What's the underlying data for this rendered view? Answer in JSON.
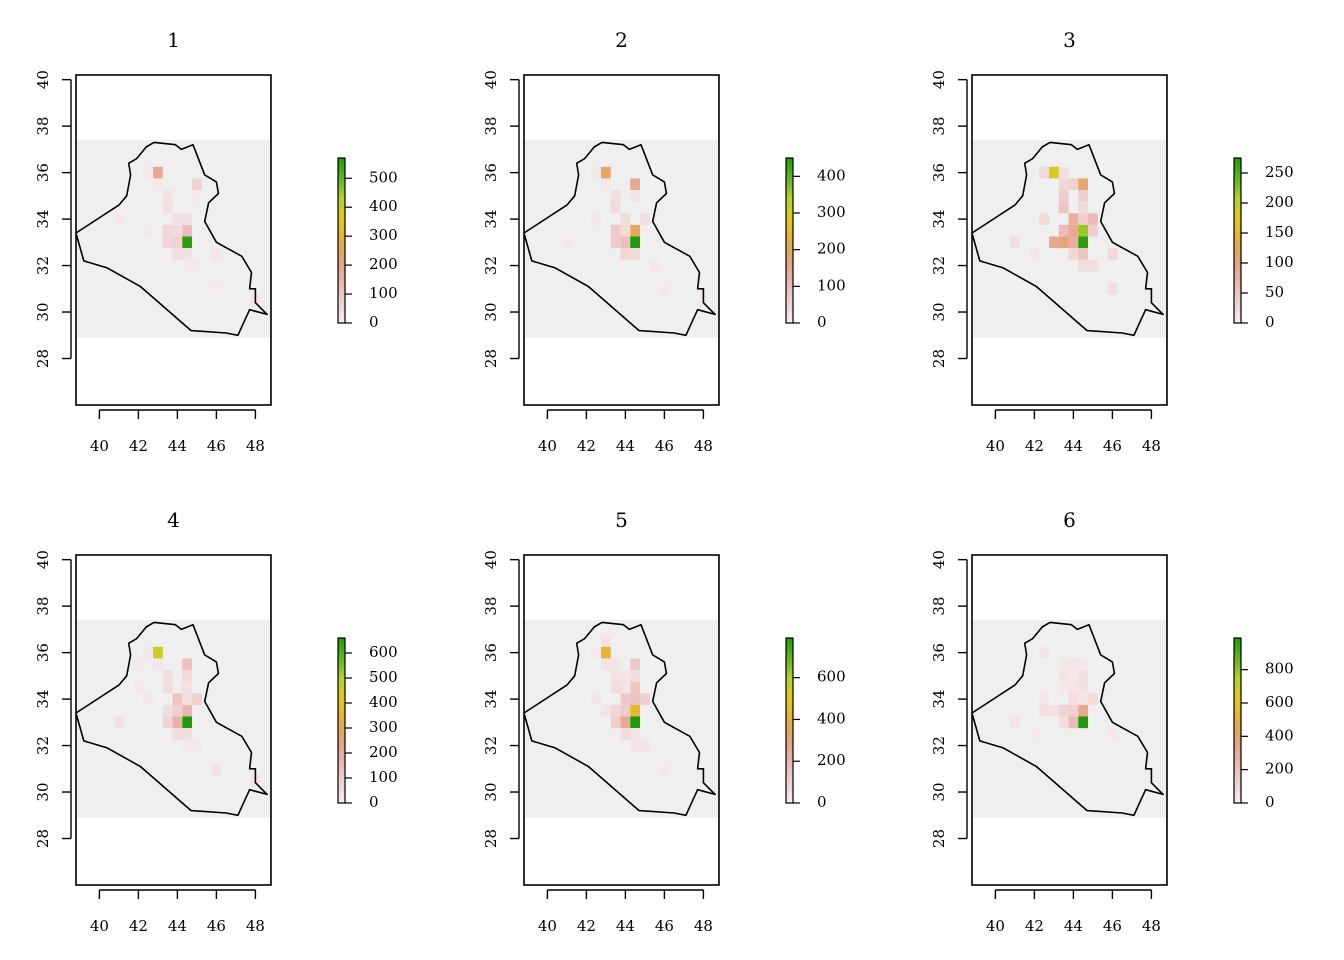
{
  "figure": {
    "palette": [
      "#f5eeee",
      "#f0d2d2",
      "#ebb3b0",
      "#e8a27a",
      "#e8ad40",
      "#e2c71c",
      "#b5d42a",
      "#6ab522",
      "#219a0a"
    ],
    "background_color": "#efefef",
    "panels": [
      {
        "title": "1",
        "x_ticks": [
          "40",
          "42",
          "44",
          "46",
          "48"
        ],
        "y_ticks": [
          "28",
          "30",
          "32",
          "34",
          "36",
          "38",
          "40"
        ],
        "legend": {
          "max": 570,
          "ticks": [
            "0",
            "100",
            "200",
            "300",
            "400",
            "500"
          ],
          "tick_values": [
            0,
            100,
            200,
            300,
            400,
            500
          ]
        },
        "cells": [
          {
            "lon": 43.0,
            "lat": 36.0,
            "value": 180
          },
          {
            "lon": 42.5,
            "lat": 36.0,
            "value": 15
          },
          {
            "lon": 43.0,
            "lat": 35.5,
            "value": 15
          },
          {
            "lon": 45.0,
            "lat": 35.5,
            "value": 70
          },
          {
            "lon": 43.5,
            "lat": 35.0,
            "value": 25
          },
          {
            "lon": 45.0,
            "lat": 35.0,
            "value": 15
          },
          {
            "lon": 43.5,
            "lat": 34.5,
            "value": 35
          },
          {
            "lon": 41.0,
            "lat": 34.0,
            "value": 15
          },
          {
            "lon": 44.0,
            "lat": 34.0,
            "value": 30
          },
          {
            "lon": 44.5,
            "lat": 34.0,
            "value": 30
          },
          {
            "lon": 42.5,
            "lat": 33.5,
            "value": 15
          },
          {
            "lon": 43.5,
            "lat": 33.5,
            "value": 60
          },
          {
            "lon": 44.0,
            "lat": 33.5,
            "value": 50
          },
          {
            "lon": 44.5,
            "lat": 33.5,
            "value": 120
          },
          {
            "lon": 43.5,
            "lat": 33.0,
            "value": 60
          },
          {
            "lon": 44.0,
            "lat": 33.0,
            "value": 70
          },
          {
            "lon": 44.5,
            "lat": 33.0,
            "value": 560
          },
          {
            "lon": 44.0,
            "lat": 32.5,
            "value": 40
          },
          {
            "lon": 44.5,
            "lat": 32.5,
            "value": 30
          },
          {
            "lon": 46.0,
            "lat": 32.5,
            "value": 20
          },
          {
            "lon": 44.5,
            "lat": 32.0,
            "value": 15
          },
          {
            "lon": 45.0,
            "lat": 32.0,
            "value": 15
          },
          {
            "lon": 46.0,
            "lat": 31.0,
            "value": 10
          },
          {
            "lon": 48.0,
            "lat": 30.5,
            "value": 20
          }
        ]
      },
      {
        "title": "2",
        "x_ticks": [
          "40",
          "42",
          "44",
          "46",
          "48"
        ],
        "y_ticks": [
          "28",
          "30",
          "32",
          "34",
          "36",
          "38",
          "40"
        ],
        "legend": {
          "max": 450,
          "ticks": [
            "0",
            "100",
            "200",
            "300",
            "400"
          ],
          "tick_values": [
            0,
            100,
            200,
            300,
            400
          ]
        },
        "cells": [
          {
            "lon": 43.0,
            "lat": 36.0,
            "value": 190
          },
          {
            "lon": 42.5,
            "lat": 36.0,
            "value": 15
          },
          {
            "lon": 43.0,
            "lat": 35.5,
            "value": 15
          },
          {
            "lon": 44.5,
            "lat": 35.5,
            "value": 150
          },
          {
            "lon": 43.5,
            "lat": 35.0,
            "value": 30
          },
          {
            "lon": 44.5,
            "lat": 35.0,
            "value": 20
          },
          {
            "lon": 43.5,
            "lat": 34.5,
            "value": 40
          },
          {
            "lon": 42.5,
            "lat": 34.0,
            "value": 15
          },
          {
            "lon": 44.0,
            "lat": 34.0,
            "value": 35
          },
          {
            "lon": 45.0,
            "lat": 34.0,
            "value": 30
          },
          {
            "lon": 43.5,
            "lat": 33.5,
            "value": 70
          },
          {
            "lon": 44.0,
            "lat": 33.5,
            "value": 40
          },
          {
            "lon": 44.5,
            "lat": 33.5,
            "value": 200
          },
          {
            "lon": 43.5,
            "lat": 33.0,
            "value": 70
          },
          {
            "lon": 44.0,
            "lat": 33.0,
            "value": 90
          },
          {
            "lon": 44.5,
            "lat": 33.0,
            "value": 450
          },
          {
            "lon": 44.0,
            "lat": 32.5,
            "value": 50
          },
          {
            "lon": 44.5,
            "lat": 32.5,
            "value": 40
          },
          {
            "lon": 45.5,
            "lat": 32.0,
            "value": 15
          },
          {
            "lon": 41.0,
            "lat": 33.0,
            "value": 10
          },
          {
            "lon": 46.0,
            "lat": 31.0,
            "value": 10
          },
          {
            "lon": 48.0,
            "lat": 30.5,
            "value": 10
          }
        ]
      },
      {
        "title": "3",
        "x_ticks": [
          "40",
          "42",
          "44",
          "46",
          "48"
        ],
        "y_ticks": [
          "28",
          "30",
          "32",
          "34",
          "36",
          "38",
          "40"
        ],
        "legend": {
          "max": 275,
          "ticks": [
            "0",
            "50",
            "100",
            "150",
            "200",
            "250"
          ],
          "tick_values": [
            0,
            50,
            100,
            150,
            200,
            250
          ]
        },
        "cells": [
          {
            "lon": 43.0,
            "lat": 36.0,
            "value": 180
          },
          {
            "lon": 42.5,
            "lat": 36.0,
            "value": 25
          },
          {
            "lon": 43.5,
            "lat": 36.0,
            "value": 20
          },
          {
            "lon": 43.5,
            "lat": 35.5,
            "value": 30
          },
          {
            "lon": 44.0,
            "lat": 35.5,
            "value": 35
          },
          {
            "lon": 44.5,
            "lat": 35.5,
            "value": 110
          },
          {
            "lon": 43.5,
            "lat": 35.0,
            "value": 40
          },
          {
            "lon": 44.5,
            "lat": 35.0,
            "value": 40
          },
          {
            "lon": 43.5,
            "lat": 34.5,
            "value": 50
          },
          {
            "lon": 44.5,
            "lat": 34.5,
            "value": 25
          },
          {
            "lon": 42.5,
            "lat": 34.0,
            "value": 25
          },
          {
            "lon": 44.0,
            "lat": 34.0,
            "value": 80
          },
          {
            "lon": 44.5,
            "lat": 34.0,
            "value": 40
          },
          {
            "lon": 45.0,
            "lat": 34.0,
            "value": 60
          },
          {
            "lon": 43.5,
            "lat": 33.5,
            "value": 60
          },
          {
            "lon": 44.0,
            "lat": 33.5,
            "value": 90
          },
          {
            "lon": 44.5,
            "lat": 33.5,
            "value": 220
          },
          {
            "lon": 45.0,
            "lat": 33.5,
            "value": 40
          },
          {
            "lon": 43.0,
            "lat": 33.0,
            "value": 90
          },
          {
            "lon": 43.5,
            "lat": 33.0,
            "value": 100
          },
          {
            "lon": 44.0,
            "lat": 33.0,
            "value": 80
          },
          {
            "lon": 44.5,
            "lat": 33.0,
            "value": 270
          },
          {
            "lon": 44.0,
            "lat": 32.5,
            "value": 30
          },
          {
            "lon": 44.5,
            "lat": 32.5,
            "value": 50
          },
          {
            "lon": 44.5,
            "lat": 32.0,
            "value": 20
          },
          {
            "lon": 45.0,
            "lat": 32.0,
            "value": 20
          },
          {
            "lon": 46.0,
            "lat": 32.5,
            "value": 25
          },
          {
            "lon": 41.0,
            "lat": 33.0,
            "value": 20
          },
          {
            "lon": 42.0,
            "lat": 32.5,
            "value": 10
          },
          {
            "lon": 46.0,
            "lat": 31.0,
            "value": 20
          }
        ]
      },
      {
        "title": "4",
        "x_ticks": [
          "40",
          "42",
          "44",
          "46",
          "48"
        ],
        "y_ticks": [
          "28",
          "30",
          "32",
          "34",
          "36",
          "38",
          "40"
        ],
        "legend": {
          "max": 660,
          "ticks": [
            "0",
            "100",
            "200",
            "300",
            "400",
            "500",
            "600"
          ],
          "tick_values": [
            0,
            100,
            200,
            300,
            400,
            500,
            600
          ]
        },
        "cells": [
          {
            "lon": 43.0,
            "lat": 36.0,
            "value": 460
          },
          {
            "lon": 42.5,
            "lat": 36.0,
            "value": 20
          },
          {
            "lon": 43.0,
            "lat": 35.5,
            "value": 25
          },
          {
            "lon": 42.0,
            "lat": 35.5,
            "value": 15
          },
          {
            "lon": 44.5,
            "lat": 35.5,
            "value": 130
          },
          {
            "lon": 43.5,
            "lat": 35.0,
            "value": 50
          },
          {
            "lon": 44.5,
            "lat": 35.0,
            "value": 60
          },
          {
            "lon": 43.5,
            "lat": 34.5,
            "value": 50
          },
          {
            "lon": 44.5,
            "lat": 34.5,
            "value": 40
          },
          {
            "lon": 42.0,
            "lat": 34.5,
            "value": 20
          },
          {
            "lon": 42.5,
            "lat": 34.0,
            "value": 25
          },
          {
            "lon": 44.0,
            "lat": 34.0,
            "value": 120
          },
          {
            "lon": 44.5,
            "lat": 34.0,
            "value": 40
          },
          {
            "lon": 45.0,
            "lat": 34.0,
            "value": 90
          },
          {
            "lon": 43.5,
            "lat": 33.5,
            "value": 50
          },
          {
            "lon": 44.0,
            "lat": 33.5,
            "value": 90
          },
          {
            "lon": 44.5,
            "lat": 33.5,
            "value": 160
          },
          {
            "lon": 43.5,
            "lat": 33.0,
            "value": 80
          },
          {
            "lon": 44.0,
            "lat": 33.0,
            "value": 170
          },
          {
            "lon": 44.5,
            "lat": 33.0,
            "value": 660
          },
          {
            "lon": 41.0,
            "lat": 33.0,
            "value": 40
          },
          {
            "lon": 44.0,
            "lat": 32.5,
            "value": 50
          },
          {
            "lon": 44.5,
            "lat": 32.5,
            "value": 50
          },
          {
            "lon": 44.5,
            "lat": 32.0,
            "value": 20
          },
          {
            "lon": 45.0,
            "lat": 32.0,
            "value": 20
          },
          {
            "lon": 46.0,
            "lat": 31.0,
            "value": 30
          },
          {
            "lon": 48.0,
            "lat": 30.5,
            "value": 30
          }
        ]
      },
      {
        "title": "5",
        "x_ticks": [
          "40",
          "42",
          "44",
          "46",
          "48"
        ],
        "y_ticks": [
          "28",
          "30",
          "32",
          "34",
          "36",
          "38",
          "40"
        ],
        "legend": {
          "max": 790,
          "ticks": [
            "0",
            "200",
            "400",
            "600"
          ],
          "tick_values": [
            0,
            200,
            400,
            600
          ]
        },
        "cells": [
          {
            "lon": 43.0,
            "lat": 36.5,
            "value": 40
          },
          {
            "lon": 43.0,
            "lat": 36.0,
            "value": 430
          },
          {
            "lon": 42.5,
            "lat": 36.0,
            "value": 20
          },
          {
            "lon": 43.0,
            "lat": 35.5,
            "value": 40
          },
          {
            "lon": 43.5,
            "lat": 35.5,
            "value": 30
          },
          {
            "lon": 44.5,
            "lat": 35.5,
            "value": 130
          },
          {
            "lon": 43.5,
            "lat": 35.0,
            "value": 40
          },
          {
            "lon": 44.0,
            "lat": 35.0,
            "value": 30
          },
          {
            "lon": 44.5,
            "lat": 35.0,
            "value": 60
          },
          {
            "lon": 43.5,
            "lat": 34.5,
            "value": 60
          },
          {
            "lon": 44.5,
            "lat": 34.5,
            "value": 140
          },
          {
            "lon": 44.0,
            "lat": 34.5,
            "value": 30
          },
          {
            "lon": 42.5,
            "lat": 34.0,
            "value": 30
          },
          {
            "lon": 44.0,
            "lat": 34.0,
            "value": 130
          },
          {
            "lon": 44.5,
            "lat": 34.0,
            "value": 150
          },
          {
            "lon": 45.0,
            "lat": 34.0,
            "value": 110
          },
          {
            "lon": 43.0,
            "lat": 33.5,
            "value": 40
          },
          {
            "lon": 43.5,
            "lat": 33.5,
            "value": 80
          },
          {
            "lon": 44.0,
            "lat": 33.5,
            "value": 120
          },
          {
            "lon": 44.5,
            "lat": 33.5,
            "value": 440
          },
          {
            "lon": 43.5,
            "lat": 33.0,
            "value": 110
          },
          {
            "lon": 44.0,
            "lat": 33.0,
            "value": 250
          },
          {
            "lon": 44.5,
            "lat": 33.0,
            "value": 790
          },
          {
            "lon": 44.0,
            "lat": 32.5,
            "value": 60
          },
          {
            "lon": 44.5,
            "lat": 32.5,
            "value": 40
          },
          {
            "lon": 44.5,
            "lat": 32.0,
            "value": 30
          },
          {
            "lon": 45.0,
            "lat": 32.0,
            "value": 30
          },
          {
            "lon": 46.0,
            "lat": 31.0,
            "value": 20
          }
        ]
      },
      {
        "title": "6",
        "x_ticks": [
          "40",
          "42",
          "44",
          "46",
          "48"
        ],
        "y_ticks": [
          "28",
          "30",
          "32",
          "34",
          "36",
          "38",
          "40"
        ],
        "legend": {
          "max": 990,
          "ticks": [
            "0",
            "200",
            "400",
            "600",
            "800"
          ],
          "tick_values": [
            0,
            200,
            400,
            600,
            800
          ]
        },
        "cells": [
          {
            "lon": 42.5,
            "lat": 36.0,
            "value": 40
          },
          {
            "lon": 43.5,
            "lat": 35.5,
            "value": 30
          },
          {
            "lon": 44.0,
            "lat": 35.5,
            "value": 40
          },
          {
            "lon": 44.5,
            "lat": 35.5,
            "value": 30
          },
          {
            "lon": 43.5,
            "lat": 35.0,
            "value": 40
          },
          {
            "lon": 44.0,
            "lat": 35.0,
            "value": 30
          },
          {
            "lon": 44.5,
            "lat": 35.0,
            "value": 60
          },
          {
            "lon": 43.5,
            "lat": 34.5,
            "value": 30
          },
          {
            "lon": 44.0,
            "lat": 34.5,
            "value": 40
          },
          {
            "lon": 44.5,
            "lat": 34.5,
            "value": 60
          },
          {
            "lon": 42.5,
            "lat": 34.0,
            "value": 30
          },
          {
            "lon": 44.0,
            "lat": 34.0,
            "value": 80
          },
          {
            "lon": 44.5,
            "lat": 34.0,
            "value": 40
          },
          {
            "lon": 45.0,
            "lat": 34.0,
            "value": 80
          },
          {
            "lon": 42.5,
            "lat": 33.5,
            "value": 60
          },
          {
            "lon": 43.0,
            "lat": 33.5,
            "value": 60
          },
          {
            "lon": 43.5,
            "lat": 33.5,
            "value": 120
          },
          {
            "lon": 44.0,
            "lat": 33.5,
            "value": 130
          },
          {
            "lon": 44.5,
            "lat": 33.5,
            "value": 330
          },
          {
            "lon": 43.5,
            "lat": 33.0,
            "value": 80
          },
          {
            "lon": 44.0,
            "lat": 33.0,
            "value": 220
          },
          {
            "lon": 44.5,
            "lat": 33.0,
            "value": 990
          },
          {
            "lon": 41.0,
            "lat": 33.0,
            "value": 40
          },
          {
            "lon": 46.0,
            "lat": 32.5,
            "value": 30
          },
          {
            "lon": 42.0,
            "lat": 32.5,
            "value": 15
          }
        ]
      }
    ]
  }
}
